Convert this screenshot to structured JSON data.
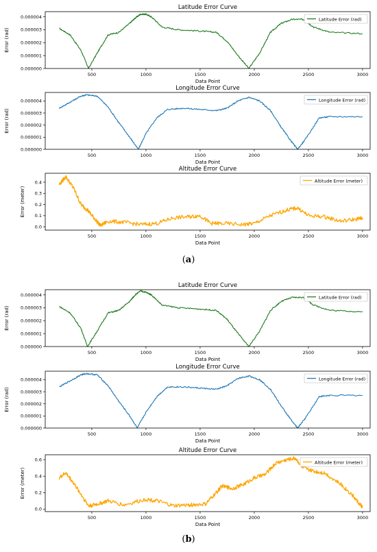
{
  "captions": {
    "a": "a",
    "b": "b"
  },
  "colors": {
    "latitude": "#1f7a1f",
    "longitude": "#1f77b4",
    "altitude": "#ffa500",
    "axis": "#000000"
  },
  "chart_data": [
    {
      "panel": "a",
      "type": "line",
      "title": "Latitude Error Curve",
      "xlabel": "Data Point",
      "ylabel": "Error (rad)",
      "xlim": [
        70,
        3070
      ],
      "ylim": [
        0,
        4.4e-06
      ],
      "xticks": [
        "500",
        "1000",
        "1500",
        "2000",
        "2500",
        "3000"
      ],
      "yticks": [
        "0.000000",
        "0.000001",
        "0.000002",
        "0.000003",
        "0.000004"
      ],
      "legend": "upper right",
      "series": [
        {
          "name": "Latitude Error (rad)",
          "color": "#1f7a1f",
          "x": [
            200,
            300,
            400,
            470,
            550,
            650,
            750,
            850,
            900,
            950,
            1000,
            1050,
            1150,
            1300,
            1500,
            1650,
            1750,
            1850,
            1950,
            2050,
            2150,
            2250,
            2350,
            2450,
            2550,
            2700,
            3000
          ],
          "y": [
            3.1e-06,
            2.6e-06,
            1.4e-06,
            0.0,
            1.2e-06,
            2.6e-06,
            2.8e-06,
            3.5e-06,
            3.9e-06,
            4.2e-06,
            4.2e-06,
            4e-06,
            3.2e-06,
            3e-06,
            2.9e-06,
            2.8e-06,
            2.1e-06,
            1e-06,
            0.0,
            1.2e-06,
            2.8e-06,
            3.5e-06,
            3.8e-06,
            3.8e-06,
            3.2e-06,
            2.8e-06,
            2.7e-06
          ]
        }
      ]
    },
    {
      "panel": "a",
      "type": "line",
      "title": "Longitude Error Curve",
      "xlabel": "Data Point",
      "ylabel": "Error (rad)",
      "xlim": [
        70,
        3070
      ],
      "ylim": [
        0,
        4.7e-06
      ],
      "xticks": [
        "500",
        "1000",
        "1500",
        "2000",
        "2500",
        "3000"
      ],
      "yticks": [
        "0.000000",
        "0.000001",
        "0.000002",
        "0.000003",
        "0.000004"
      ],
      "legend": "upper right",
      "series": [
        {
          "name": "Longitude Error (rad)",
          "color": "#1f77b4",
          "x": [
            200,
            300,
            400,
            450,
            550,
            650,
            750,
            850,
            930,
            1000,
            1100,
            1200,
            1350,
            1500,
            1650,
            1750,
            1850,
            1950,
            2050,
            2150,
            2250,
            2330,
            2400,
            2470,
            2600,
            2700,
            3000
          ],
          "y": [
            3.4e-06,
            3.9e-06,
            4.4e-06,
            4.5e-06,
            4.4e-06,
            3.5e-06,
            2.2e-06,
            1e-06,
            0.0,
            1.3e-06,
            2.6e-06,
            3.3e-06,
            3.4e-06,
            3.3e-06,
            3.2e-06,
            3.4e-06,
            4e-06,
            4.3e-06,
            4e-06,
            3.2e-06,
            1.8e-06,
            8e-07,
            0.0,
            8e-07,
            2.6e-06,
            2.7e-06,
            2.7e-06
          ]
        }
      ]
    },
    {
      "panel": "a",
      "type": "line",
      "title": "Altitude Error Curve",
      "xlabel": "Data Point",
      "ylabel": "Error (meter)",
      "xlim": [
        70,
        3070
      ],
      "ylim": [
        -0.03,
        0.48
      ],
      "xticks": [
        "500",
        "1000",
        "1500",
        "2000",
        "2500",
        "3000"
      ],
      "yticks": [
        "0.0",
        "0.1",
        "0.2",
        "0.3",
        "0.4"
      ],
      "legend": "upper right",
      "series": [
        {
          "name": "Altitude Error (meter)",
          "color": "#ffa500",
          "x": [
            200,
            260,
            330,
            400,
            460,
            520,
            580,
            650,
            800,
            950,
            1100,
            1250,
            1400,
            1500,
            1600,
            1700,
            1900,
            2000,
            2150,
            2300,
            2400,
            2500,
            2650,
            2800,
            2950,
            3000
          ],
          "y": [
            0.38,
            0.45,
            0.35,
            0.2,
            0.15,
            0.08,
            0.01,
            0.05,
            0.04,
            0.02,
            0.03,
            0.08,
            0.09,
            0.1,
            0.03,
            0.03,
            0.02,
            0.03,
            0.1,
            0.15,
            0.17,
            0.1,
            0.09,
            0.05,
            0.07,
            0.08
          ]
        }
      ]
    },
    {
      "panel": "b",
      "type": "line",
      "title": "Latitude Error Curve",
      "xlabel": "Data Point",
      "ylabel": "Error (rad)",
      "xlim": [
        70,
        3070
      ],
      "ylim": [
        0,
        4.4e-06
      ],
      "xticks": [
        "500",
        "1000",
        "1500",
        "2000",
        "2500",
        "3000"
      ],
      "yticks": [
        "0.000000",
        "0.000001",
        "0.000002",
        "0.000003",
        "0.000004"
      ],
      "legend": "upper right",
      "series": [
        {
          "name": "Latitude Error (rad)",
          "color": "#1f7a1f",
          "x": [
            200,
            300,
            400,
            460,
            550,
            650,
            750,
            850,
            900,
            950,
            1000,
            1050,
            1150,
            1300,
            1500,
            1650,
            1750,
            1850,
            1950,
            2050,
            2150,
            2250,
            2350,
            2450,
            2550,
            2700,
            3000
          ],
          "y": [
            3.1e-06,
            2.6e-06,
            1.4e-06,
            0.0,
            1.2e-06,
            2.6e-06,
            2.8e-06,
            3.5e-06,
            4e-06,
            4.3e-06,
            4.2e-06,
            4e-06,
            3.2e-06,
            3e-06,
            2.9e-06,
            2.8e-06,
            2.1e-06,
            1e-06,
            0.0,
            1.2e-06,
            2.8e-06,
            3.5e-06,
            3.8e-06,
            3.8e-06,
            3.2e-06,
            2.8e-06,
            2.7e-06
          ]
        }
      ]
    },
    {
      "panel": "b",
      "type": "line",
      "title": "Longitude Error Curve",
      "xlabel": "Data Point",
      "ylabel": "Error (rad)",
      "xlim": [
        70,
        3070
      ],
      "ylim": [
        0,
        4.7e-06
      ],
      "xticks": [
        "500",
        "1000",
        "1500",
        "2000",
        "2500",
        "3000"
      ],
      "yticks": [
        "0.000000",
        "0.000001",
        "0.000002",
        "0.000003",
        "0.000004"
      ],
      "legend": "upper right",
      "series": [
        {
          "name": "Longitude Error (rad)",
          "color": "#1f77b4",
          "x": [
            200,
            300,
            400,
            450,
            550,
            650,
            750,
            850,
            920,
            1000,
            1100,
            1200,
            1350,
            1500,
            1650,
            1750,
            1850,
            1950,
            2050,
            2150,
            2250,
            2330,
            2400,
            2470,
            2600,
            2700,
            3000
          ],
          "y": [
            3.4e-06,
            3.9e-06,
            4.4e-06,
            4.5e-06,
            4.4e-06,
            3.5e-06,
            2.2e-06,
            1e-06,
            0.0,
            1.3e-06,
            2.6e-06,
            3.4e-06,
            3.4e-06,
            3.3e-06,
            3.2e-06,
            3.5e-06,
            4.1e-06,
            4.3e-06,
            4e-06,
            3.2e-06,
            1.8e-06,
            8e-07,
            0.0,
            8e-07,
            2.6e-06,
            2.7e-06,
            2.7e-06
          ]
        }
      ]
    },
    {
      "panel": "b",
      "type": "line",
      "title": "Altitude Error Curve",
      "xlabel": "Data Point",
      "ylabel": "Error (meter)",
      "xlim": [
        70,
        3070
      ],
      "ylim": [
        -0.03,
        0.66
      ],
      "xticks": [
        "500",
        "1000",
        "1500",
        "2000",
        "2500",
        "3000"
      ],
      "yticks": [
        "0.0",
        "0.2",
        "0.4",
        "0.6"
      ],
      "legend": "upper right",
      "series": [
        {
          "name": "Altitude Error (meter)",
          "color": "#ffa500",
          "x": [
            200,
            260,
            330,
            400,
            470,
            550,
            650,
            800,
            1000,
            1100,
            1250,
            1400,
            1550,
            1650,
            1700,
            1800,
            1900,
            2000,
            2100,
            2200,
            2300,
            2380,
            2450,
            2550,
            2650,
            2800,
            2900,
            2980,
            3000
          ],
          "y": [
            0.38,
            0.44,
            0.32,
            0.18,
            0.04,
            0.06,
            0.1,
            0.05,
            0.12,
            0.1,
            0.04,
            0.05,
            0.06,
            0.2,
            0.28,
            0.25,
            0.3,
            0.38,
            0.42,
            0.56,
            0.6,
            0.62,
            0.5,
            0.46,
            0.44,
            0.3,
            0.18,
            0.05,
            0.02
          ]
        }
      ]
    }
  ]
}
